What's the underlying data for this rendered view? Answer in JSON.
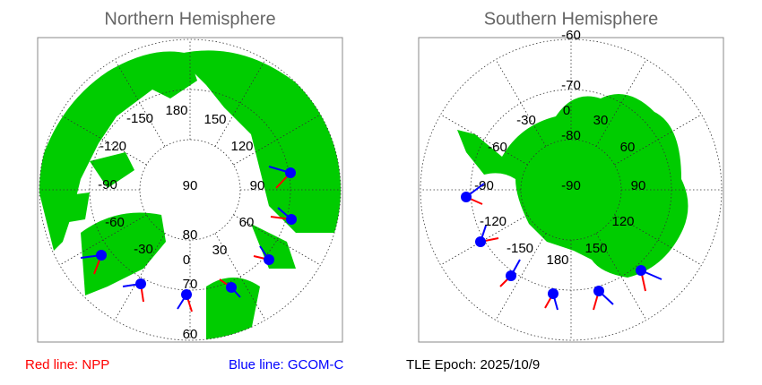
{
  "panels": [
    {
      "title": "Northern Hemisphere",
      "lon_labels": [
        "180",
        "150",
        "120",
        "90",
        "60",
        "30",
        "0",
        "-30",
        "-60",
        "-90",
        "-120",
        "-150"
      ],
      "lat_labels": [
        "90",
        "80",
        "70",
        "60"
      ]
    },
    {
      "title": "Southern Hemisphere",
      "lon_labels": [
        "0",
        "30",
        "60",
        "90",
        "120",
        "150",
        "180",
        "-150",
        "-120",
        "-90",
        "-60",
        "-30"
      ],
      "lat_labels": [
        "-90",
        "-80",
        "-70",
        "-60"
      ]
    }
  ],
  "legend": {
    "npp": "Red line: NPP",
    "gcom": "Blue line: GCOM-C",
    "epoch": "TLE Epoch: 2025/10/9"
  }
}
